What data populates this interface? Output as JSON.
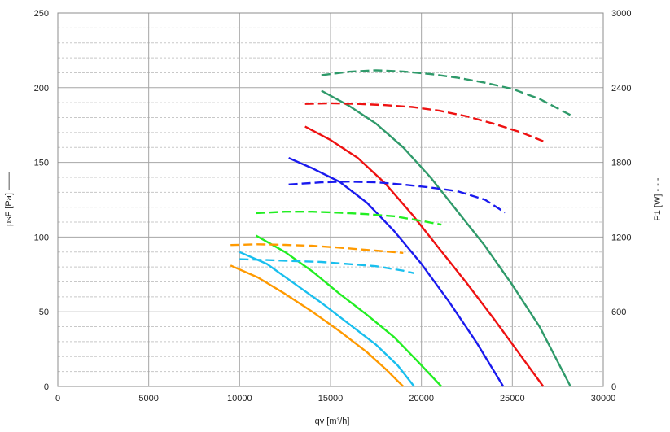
{
  "chart_data": {
    "type": "line",
    "xlabel": "qv [m³/h]",
    "ylabel": "psF [Pa] ——",
    "y2label": "P1 [W] - - -",
    "xlim": [
      0,
      30000
    ],
    "ylim": [
      0,
      250
    ],
    "y2lim": [
      0,
      3000
    ],
    "xticks": [
      0,
      5000,
      10000,
      15000,
      20000,
      25000,
      30000
    ],
    "yticks": [
      0,
      50,
      100,
      150,
      200,
      250
    ],
    "y2ticks": [
      0,
      600,
      1200,
      1800,
      2400,
      3000
    ],
    "grid": "major vertical and horizontal, minor horizontal dashed",
    "legend": "none",
    "series": [
      {
        "kind": "pressure",
        "axis": "left",
        "style": "solid",
        "color": "#ff9a00",
        "x": [
          9500,
          11000,
          12500,
          14000,
          15500,
          17000,
          18000,
          19000
        ],
        "y": [
          81,
          73,
          62,
          50,
          37,
          23,
          12,
          0
        ]
      },
      {
        "kind": "pressure",
        "axis": "left",
        "style": "solid",
        "color": "#19bfee",
        "x": [
          10000,
          11500,
          13000,
          14500,
          16000,
          17500,
          18700,
          19600
        ],
        "y": [
          90,
          82,
          69,
          56,
          42,
          28,
          14,
          0
        ]
      },
      {
        "kind": "pressure",
        "axis": "left",
        "style": "solid",
        "color": "#22ee22",
        "x": [
          10900,
          12500,
          14000,
          15500,
          17000,
          18500,
          19700,
          21100
        ],
        "y": [
          101,
          90,
          77,
          62,
          48,
          33,
          18,
          0
        ]
      },
      {
        "kind": "pressure",
        "axis": "left",
        "style": "solid",
        "color": "#1a1aee",
        "x": [
          12700,
          14000,
          15500,
          17000,
          18500,
          20000,
          21500,
          23000,
          24500
        ],
        "y": [
          153,
          146,
          137,
          123,
          104,
          82,
          57,
          30,
          0
        ]
      },
      {
        "kind": "pressure",
        "axis": "left",
        "style": "solid",
        "color": "#ee1111",
        "x": [
          13600,
          15000,
          16500,
          18000,
          19500,
          21000,
          22500,
          24000,
          25500,
          26700
        ],
        "y": [
          174,
          165,
          153,
          136,
          115,
          92,
          69,
          45,
          20,
          0
        ]
      },
      {
        "kind": "pressure",
        "axis": "left",
        "style": "solid",
        "color": "#2f9a6a",
        "x": [
          14500,
          16000,
          17500,
          19000,
          20500,
          22000,
          23500,
          25000,
          26500,
          28200
        ],
        "y": [
          198,
          188,
          176,
          160,
          140,
          117,
          94,
          68,
          40,
          0
        ]
      },
      {
        "kind": "power",
        "axis": "right",
        "style": "dashed",
        "color": "#ff9a00",
        "x": [
          9500,
          11000,
          12500,
          14000,
          15500,
          17000,
          18500,
          19000
        ],
        "y": [
          1136,
          1142,
          1137,
          1130,
          1115,
          1097,
          1079,
          1073
        ]
      },
      {
        "kind": "power",
        "axis": "right",
        "style": "dashed",
        "color": "#19bfee",
        "x": [
          10000,
          11500,
          13000,
          14500,
          16000,
          17500,
          19000,
          19600
        ],
        "y": [
          1022,
          1016,
          1007,
          1000,
          983,
          966,
          930,
          910
        ]
      },
      {
        "kind": "power",
        "axis": "right",
        "style": "dashed",
        "color": "#22ee22",
        "x": [
          10900,
          12500,
          14000,
          15500,
          17000,
          18500,
          20000,
          21100
        ],
        "y": [
          1393,
          1404,
          1404,
          1396,
          1384,
          1367,
          1330,
          1300
        ]
      },
      {
        "kind": "power",
        "axis": "right",
        "style": "dashed",
        "color": "#1a1aee",
        "x": [
          12700,
          14500,
          16000,
          17500,
          19000,
          20500,
          22000,
          23500,
          24600
        ],
        "y": [
          1622,
          1640,
          1646,
          1640,
          1622,
          1598,
          1568,
          1500,
          1397
        ]
      },
      {
        "kind": "power",
        "axis": "right",
        "style": "dashed",
        "color": "#ee1111",
        "x": [
          13600,
          15000,
          16500,
          18000,
          19500,
          21000,
          22500,
          24000,
          25500,
          26700
        ],
        "y": [
          2270,
          2275,
          2270,
          2260,
          2245,
          2215,
          2170,
          2110,
          2040,
          1970
        ]
      },
      {
        "kind": "power",
        "axis": "right",
        "style": "dashed",
        "color": "#2f9a6a",
        "x": [
          14500,
          16000,
          17500,
          19000,
          20500,
          22000,
          23500,
          25000,
          26500,
          28200
        ],
        "y": [
          2500,
          2528,
          2540,
          2530,
          2510,
          2480,
          2440,
          2390,
          2310,
          2180
        ]
      }
    ]
  }
}
